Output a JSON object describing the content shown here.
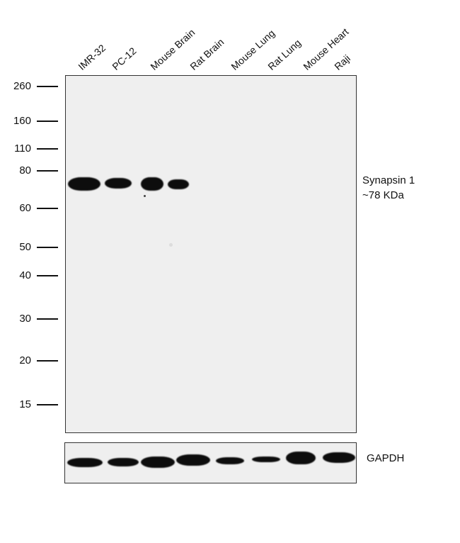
{
  "lanes": [
    "IMR-32",
    "PC-12",
    "Mouse Brain",
    "Rat Brain",
    "Mouse Lung",
    "Rat Lung",
    "Mouse Heart",
    "Raji"
  ],
  "markers": [
    "260",
    "160",
    "110",
    "80",
    "60",
    "50",
    "40",
    "30",
    "20",
    "15"
  ],
  "target": {
    "name": "Synapsin 1",
    "size": "~78 KDa"
  },
  "loading_control": "GAPDH",
  "colors": {
    "membrane": "#efefef",
    "band": "#0d0d0d",
    "border": "#333333"
  }
}
